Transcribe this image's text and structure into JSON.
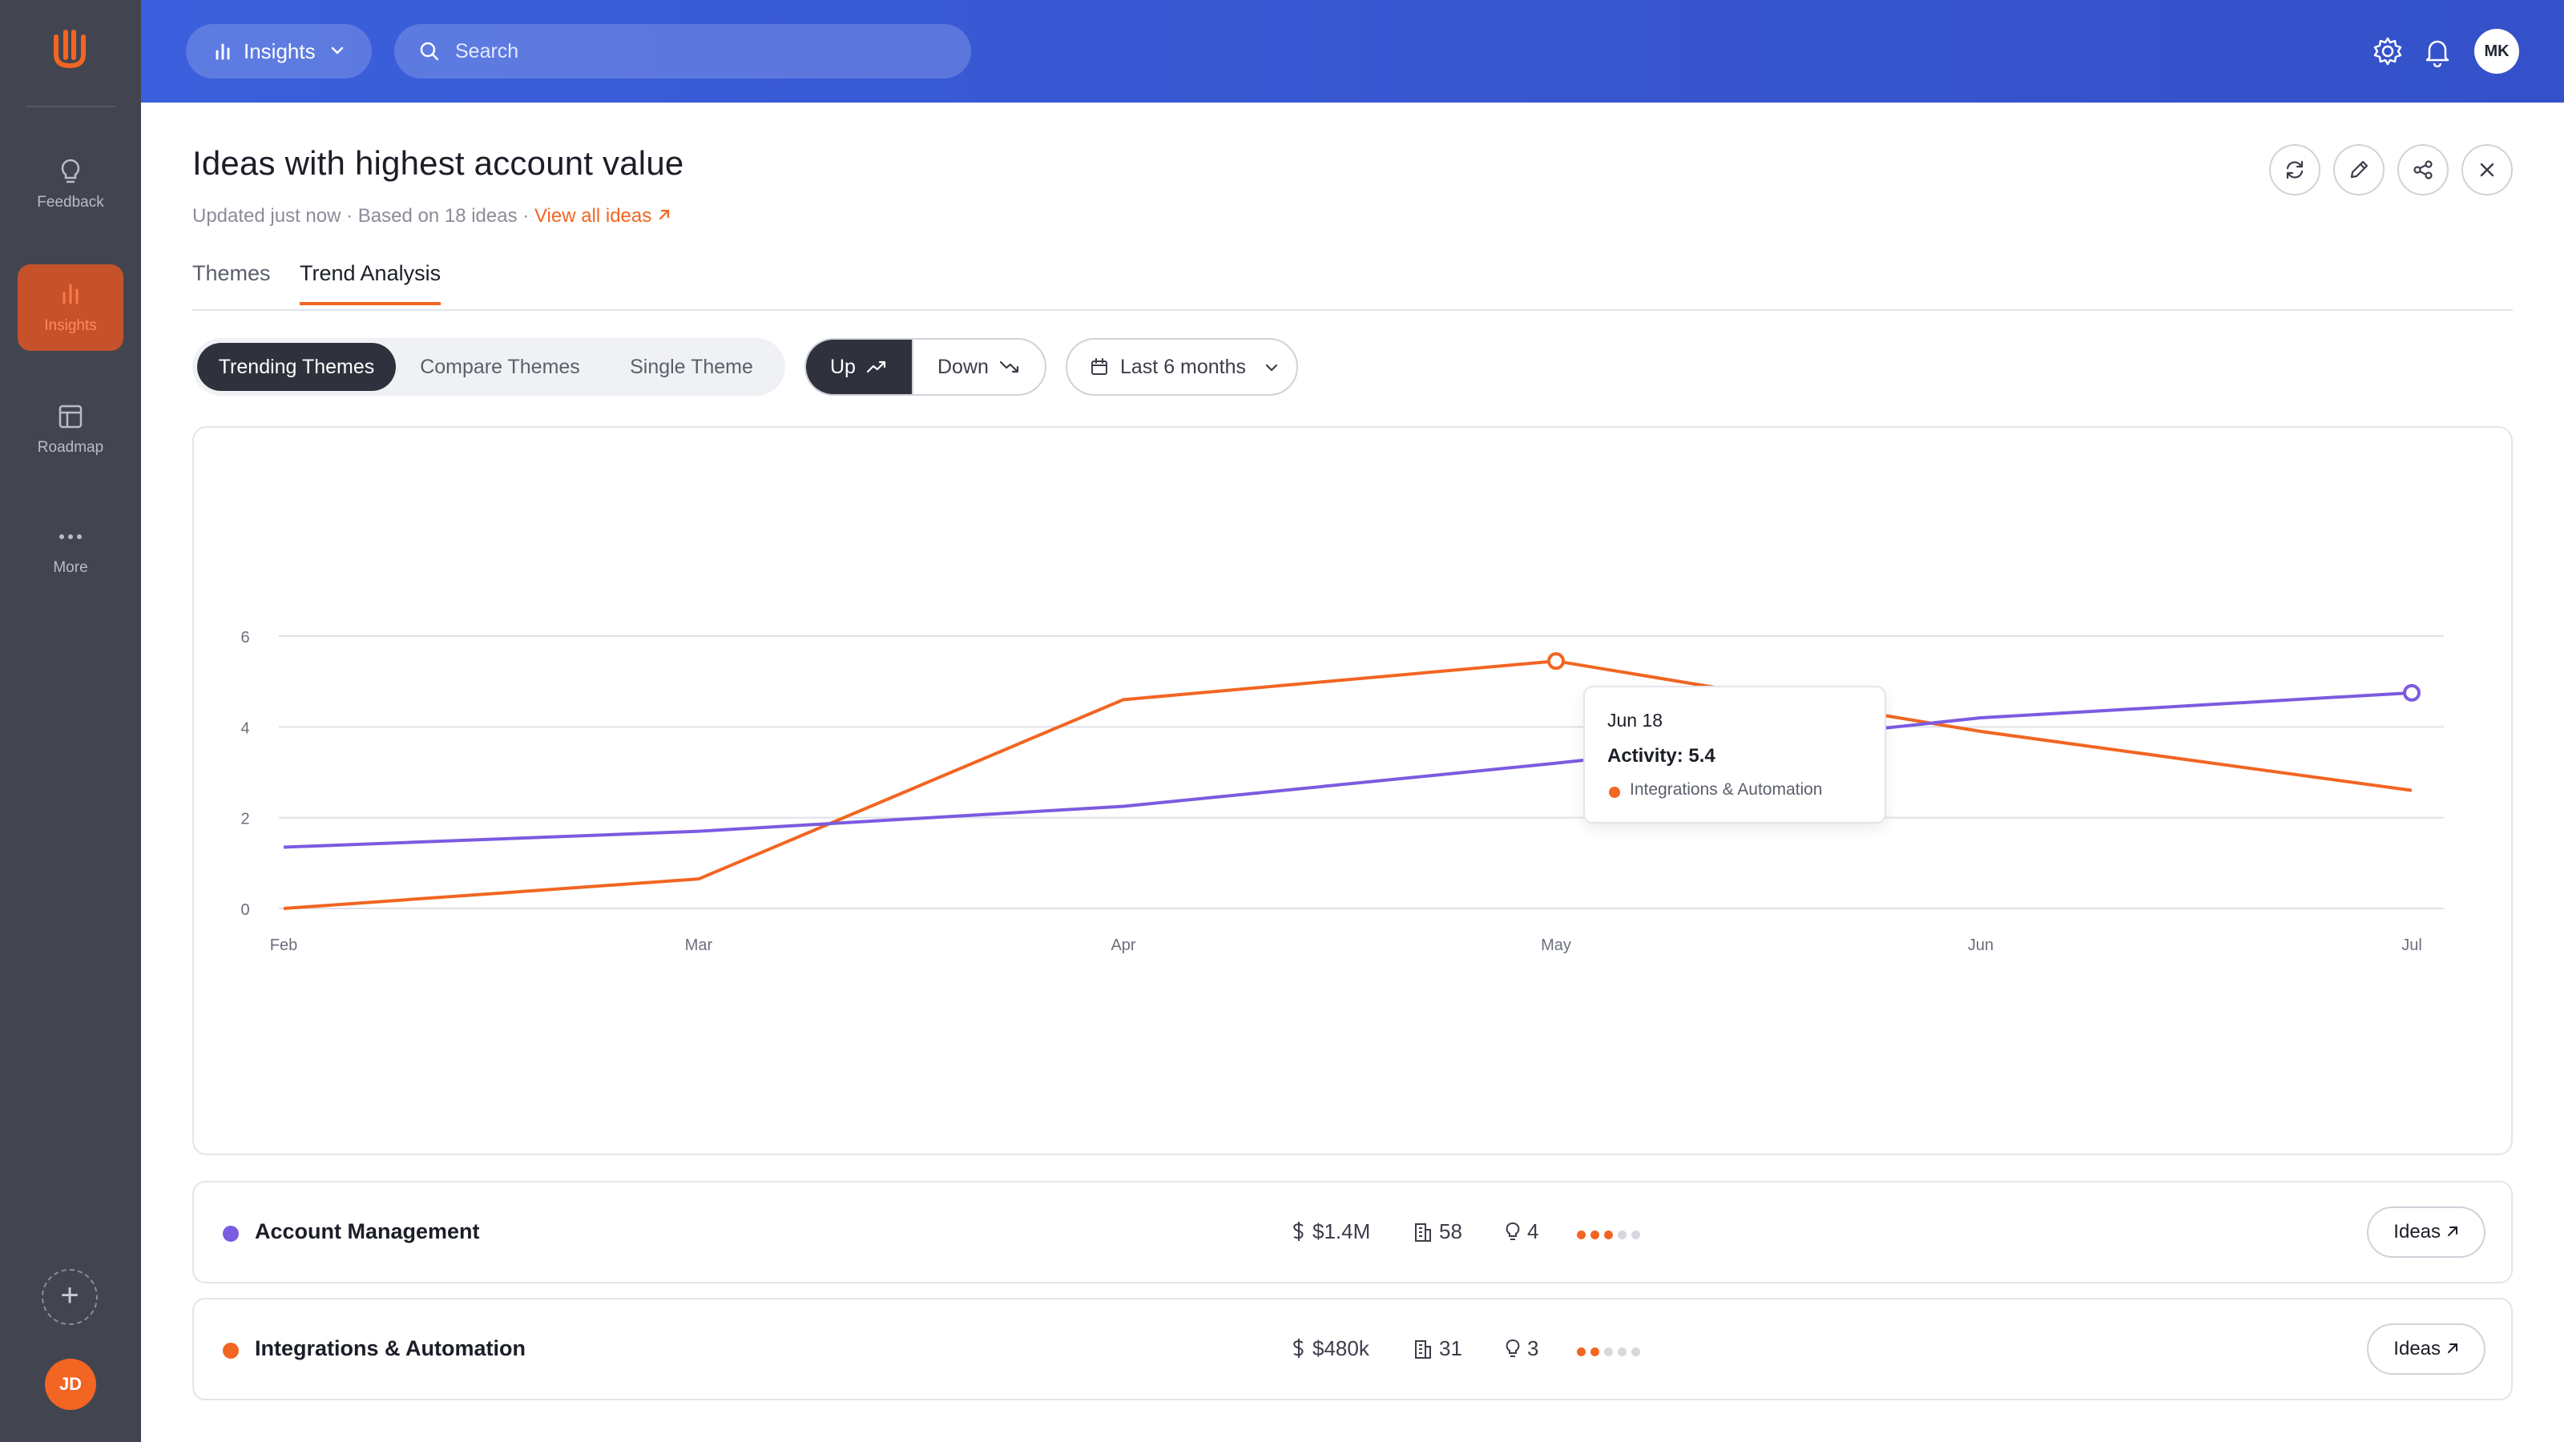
{
  "sidebar": {
    "items": [
      {
        "label": "Feedback",
        "icon": "lightbulb-icon"
      },
      {
        "label": "Insights",
        "icon": "bar-chart-icon"
      },
      {
        "label": "Roadmap",
        "icon": "roadmap-icon"
      },
      {
        "label": "More",
        "icon": "more-dots-icon"
      }
    ],
    "user_initials": "JD"
  },
  "topbar": {
    "module": "Insights",
    "search_placeholder": "Search",
    "avatar_initials": "MK"
  },
  "header": {
    "title": "Ideas with highest account value",
    "meta": "Updated just now · Based on 18 ideas · ",
    "view_all": "View all ideas"
  },
  "tabs": [
    {
      "label": "Themes",
      "active": false
    },
    {
      "label": "Trend Analysis",
      "active": true
    }
  ],
  "filters": {
    "segments": [
      "Trending Themes",
      "Compare Themes",
      "Single Theme"
    ],
    "up": "Up",
    "down": "Down",
    "range": "Last 6 months"
  },
  "chart_data": {
    "type": "line",
    "x": [
      "Feb",
      "Mar",
      "Apr",
      "May",
      "Jun",
      "Jul"
    ],
    "y_ticks": [
      0,
      2,
      4,
      6
    ],
    "ylim": [
      0,
      6
    ],
    "series": [
      {
        "name": "Integrations & Automation",
        "color": "#f26522",
        "values": [
          0,
          0.65,
          4.6,
          5.45,
          3.9,
          2.6
        ]
      },
      {
        "name": "Account Management",
        "color": "#7b5be0",
        "values": [
          1.35,
          1.7,
          2.25,
          3.2,
          4.2,
          4.75
        ]
      }
    ],
    "tooltip": {
      "date": "Jun 18",
      "value": "Activity: 5.4",
      "series": "Integrations & Automation"
    }
  },
  "themes": [
    {
      "name": "Account Management",
      "color": "#7b5be0",
      "value": "$1.4M",
      "accounts": "58",
      "ideas": "4",
      "rating": 3,
      "button": "Ideas"
    },
    {
      "name": "Integrations & Automation",
      "color": "#f26522",
      "value": "$480k",
      "accounts": "31",
      "ideas": "3",
      "rating": 2,
      "button": "Ideas"
    }
  ]
}
